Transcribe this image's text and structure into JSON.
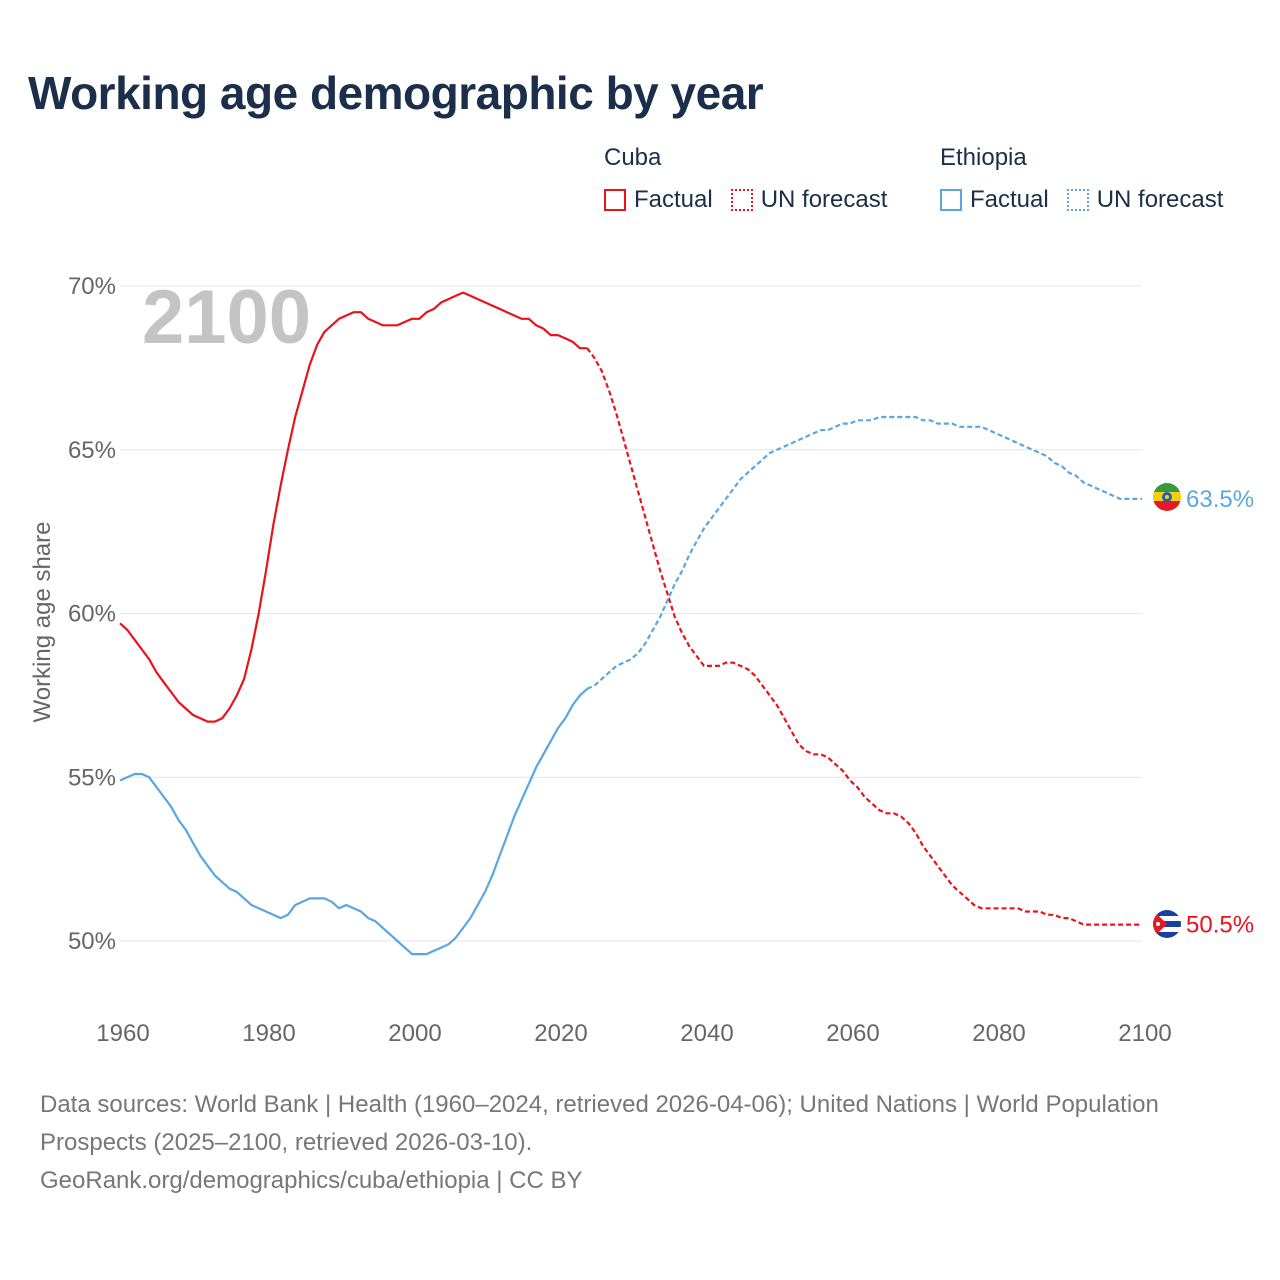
{
  "title": "Working age demographic by year",
  "legend": {
    "cuba": {
      "name": "Cuba",
      "factual": "Factual",
      "forecast": "UN forecast",
      "color": "#e8131b"
    },
    "ethiopia": {
      "name": "Ethiopia",
      "factual": "Factual",
      "forecast": "UN forecast",
      "color": "#5aa6e3"
    }
  },
  "chart_data": {
    "type": "line",
    "title": "Working age demographic by year",
    "ylabel": "Working age share",
    "xlabel": "",
    "xlim": [
      1960,
      2100
    ],
    "ylim": [
      48.6,
      70
    ],
    "x_ticks": [
      1960,
      1980,
      2000,
      2020,
      2040,
      2060,
      2080,
      2100
    ],
    "y_ticks": [
      50,
      55,
      60,
      65,
      70
    ],
    "y_tick_labels": [
      "50%",
      "55%",
      "60%",
      "65%",
      "70%"
    ],
    "grid": true,
    "year_watermark": "2100",
    "factual_until": 2024,
    "series": [
      {
        "name": "Cuba",
        "color": "#e8131b",
        "end_label": "50.5%",
        "points": [
          [
            1960,
            59.7
          ],
          [
            1961,
            59.5
          ],
          [
            1962,
            59.2
          ],
          [
            1963,
            58.9
          ],
          [
            1964,
            58.6
          ],
          [
            1965,
            58.2
          ],
          [
            1966,
            57.9
          ],
          [
            1967,
            57.6
          ],
          [
            1968,
            57.3
          ],
          [
            1969,
            57.1
          ],
          [
            1970,
            56.9
          ],
          [
            1971,
            56.8
          ],
          [
            1972,
            56.7
          ],
          [
            1973,
            56.7
          ],
          [
            1974,
            56.8
          ],
          [
            1975,
            57.1
          ],
          [
            1976,
            57.5
          ],
          [
            1977,
            58.0
          ],
          [
            1978,
            58.9
          ],
          [
            1979,
            60.0
          ],
          [
            1980,
            61.3
          ],
          [
            1981,
            62.7
          ],
          [
            1982,
            63.9
          ],
          [
            1983,
            65.0
          ],
          [
            1984,
            66.0
          ],
          [
            1985,
            66.8
          ],
          [
            1986,
            67.6
          ],
          [
            1987,
            68.2
          ],
          [
            1988,
            68.6
          ],
          [
            1989,
            68.8
          ],
          [
            1990,
            69.0
          ],
          [
            1991,
            69.1
          ],
          [
            1992,
            69.2
          ],
          [
            1993,
            69.2
          ],
          [
            1994,
            69.0
          ],
          [
            1995,
            68.9
          ],
          [
            1996,
            68.8
          ],
          [
            1997,
            68.8
          ],
          [
            1998,
            68.8
          ],
          [
            1999,
            68.9
          ],
          [
            2000,
            69.0
          ],
          [
            2001,
            69.0
          ],
          [
            2002,
            69.2
          ],
          [
            2003,
            69.3
          ],
          [
            2004,
            69.5
          ],
          [
            2005,
            69.6
          ],
          [
            2006,
            69.7
          ],
          [
            2007,
            69.8
          ],
          [
            2008,
            69.7
          ],
          [
            2009,
            69.6
          ],
          [
            2010,
            69.5
          ],
          [
            2011,
            69.4
          ],
          [
            2012,
            69.3
          ],
          [
            2013,
            69.2
          ],
          [
            2014,
            69.1
          ],
          [
            2015,
            69.0
          ],
          [
            2016,
            69.0
          ],
          [
            2017,
            68.8
          ],
          [
            2018,
            68.7
          ],
          [
            2019,
            68.5
          ],
          [
            2020,
            68.5
          ],
          [
            2021,
            68.4
          ],
          [
            2022,
            68.3
          ],
          [
            2023,
            68.1
          ],
          [
            2024,
            68.1
          ],
          [
            2025,
            67.8
          ],
          [
            2026,
            67.4
          ],
          [
            2027,
            66.8
          ],
          [
            2028,
            66.1
          ],
          [
            2029,
            65.3
          ],
          [
            2030,
            64.5
          ],
          [
            2031,
            63.7
          ],
          [
            2032,
            62.9
          ],
          [
            2033,
            62.1
          ],
          [
            2034,
            61.3
          ],
          [
            2035,
            60.6
          ],
          [
            2036,
            59.9
          ],
          [
            2037,
            59.4
          ],
          [
            2038,
            59.0
          ],
          [
            2039,
            58.7
          ],
          [
            2040,
            58.4
          ],
          [
            2041,
            58.4
          ],
          [
            2042,
            58.4
          ],
          [
            2043,
            58.5
          ],
          [
            2044,
            58.5
          ],
          [
            2045,
            58.4
          ],
          [
            2046,
            58.3
          ],
          [
            2047,
            58.1
          ],
          [
            2048,
            57.8
          ],
          [
            2049,
            57.5
          ],
          [
            2050,
            57.2
          ],
          [
            2051,
            56.8
          ],
          [
            2052,
            56.4
          ],
          [
            2053,
            56.0
          ],
          [
            2054,
            55.8
          ],
          [
            2055,
            55.7
          ],
          [
            2056,
            55.7
          ],
          [
            2057,
            55.6
          ],
          [
            2058,
            55.4
          ],
          [
            2059,
            55.2
          ],
          [
            2060,
            54.9
          ],
          [
            2061,
            54.7
          ],
          [
            2062,
            54.4
          ],
          [
            2063,
            54.2
          ],
          [
            2064,
            54.0
          ],
          [
            2065,
            53.9
          ],
          [
            2066,
            53.9
          ],
          [
            2067,
            53.8
          ],
          [
            2068,
            53.6
          ],
          [
            2069,
            53.3
          ],
          [
            2070,
            52.9
          ],
          [
            2071,
            52.6
          ],
          [
            2072,
            52.3
          ],
          [
            2073,
            52.0
          ],
          [
            2074,
            51.7
          ],
          [
            2075,
            51.5
          ],
          [
            2076,
            51.3
          ],
          [
            2077,
            51.1
          ],
          [
            2078,
            51.0
          ],
          [
            2079,
            51.0
          ],
          [
            2080,
            51.0
          ],
          [
            2081,
            51.0
          ],
          [
            2082,
            51.0
          ],
          [
            2083,
            51.0
          ],
          [
            2084,
            50.9
          ],
          [
            2085,
            50.9
          ],
          [
            2086,
            50.9
          ],
          [
            2087,
            50.8
          ],
          [
            2088,
            50.8
          ],
          [
            2089,
            50.7
          ],
          [
            2090,
            50.7
          ],
          [
            2091,
            50.6
          ],
          [
            2092,
            50.5
          ],
          [
            2093,
            50.5
          ],
          [
            2100,
            50.5
          ]
        ]
      },
      {
        "name": "Ethiopia",
        "color": "#5aa6e3",
        "end_label": "63.5%",
        "points": [
          [
            1960,
            54.9
          ],
          [
            1961,
            55.0
          ],
          [
            1962,
            55.1
          ],
          [
            1963,
            55.1
          ],
          [
            1964,
            55.0
          ],
          [
            1965,
            54.7
          ],
          [
            1966,
            54.4
          ],
          [
            1967,
            54.1
          ],
          [
            1968,
            53.7
          ],
          [
            1969,
            53.4
          ],
          [
            1970,
            53.0
          ],
          [
            1971,
            52.6
          ],
          [
            1972,
            52.3
          ],
          [
            1973,
            52.0
          ],
          [
            1974,
            51.8
          ],
          [
            1975,
            51.6
          ],
          [
            1976,
            51.5
          ],
          [
            1977,
            51.3
          ],
          [
            1978,
            51.1
          ],
          [
            1979,
            51.0
          ],
          [
            1980,
            50.9
          ],
          [
            1981,
            50.8
          ],
          [
            1982,
            50.7
          ],
          [
            1983,
            50.8
          ],
          [
            1984,
            51.1
          ],
          [
            1985,
            51.2
          ],
          [
            1986,
            51.3
          ],
          [
            1987,
            51.3
          ],
          [
            1988,
            51.3
          ],
          [
            1989,
            51.2
          ],
          [
            1990,
            51.0
          ],
          [
            1991,
            51.1
          ],
          [
            1992,
            51.0
          ],
          [
            1993,
            50.9
          ],
          [
            1994,
            50.7
          ],
          [
            1995,
            50.6
          ],
          [
            1996,
            50.4
          ],
          [
            1997,
            50.2
          ],
          [
            1998,
            50.0
          ],
          [
            1999,
            49.8
          ],
          [
            2000,
            49.6
          ],
          [
            2001,
            49.6
          ],
          [
            2002,
            49.6
          ],
          [
            2003,
            49.7
          ],
          [
            2004,
            49.8
          ],
          [
            2005,
            49.9
          ],
          [
            2006,
            50.1
          ],
          [
            2007,
            50.4
          ],
          [
            2008,
            50.7
          ],
          [
            2009,
            51.1
          ],
          [
            2010,
            51.5
          ],
          [
            2011,
            52.0
          ],
          [
            2012,
            52.6
          ],
          [
            2013,
            53.2
          ],
          [
            2014,
            53.8
          ],
          [
            2015,
            54.3
          ],
          [
            2016,
            54.8
          ],
          [
            2017,
            55.3
          ],
          [
            2018,
            55.7
          ],
          [
            2019,
            56.1
          ],
          [
            2020,
            56.5
          ],
          [
            2021,
            56.8
          ],
          [
            2022,
            57.2
          ],
          [
            2023,
            57.5
          ],
          [
            2024,
            57.7
          ],
          [
            2025,
            57.8
          ],
          [
            2026,
            58.0
          ],
          [
            2027,
            58.2
          ],
          [
            2028,
            58.4
          ],
          [
            2029,
            58.5
          ],
          [
            2030,
            58.6
          ],
          [
            2031,
            58.8
          ],
          [
            2032,
            59.1
          ],
          [
            2033,
            59.5
          ],
          [
            2034,
            59.9
          ],
          [
            2035,
            60.4
          ],
          [
            2036,
            60.9
          ],
          [
            2037,
            61.3
          ],
          [
            2038,
            61.8
          ],
          [
            2039,
            62.2
          ],
          [
            2040,
            62.6
          ],
          [
            2041,
            62.9
          ],
          [
            2042,
            63.2
          ],
          [
            2043,
            63.5
          ],
          [
            2044,
            63.8
          ],
          [
            2045,
            64.1
          ],
          [
            2046,
            64.3
          ],
          [
            2047,
            64.5
          ],
          [
            2048,
            64.7
          ],
          [
            2049,
            64.9
          ],
          [
            2050,
            65.0
          ],
          [
            2051,
            65.1
          ],
          [
            2052,
            65.2
          ],
          [
            2053,
            65.3
          ],
          [
            2054,
            65.4
          ],
          [
            2055,
            65.5
          ],
          [
            2056,
            65.6
          ],
          [
            2057,
            65.6
          ],
          [
            2058,
            65.7
          ],
          [
            2059,
            65.8
          ],
          [
            2060,
            65.8
          ],
          [
            2061,
            65.9
          ],
          [
            2062,
            65.9
          ],
          [
            2063,
            65.9
          ],
          [
            2064,
            66.0
          ],
          [
            2065,
            66.0
          ],
          [
            2066,
            66.0
          ],
          [
            2067,
            66.0
          ],
          [
            2068,
            66.0
          ],
          [
            2069,
            66.0
          ],
          [
            2070,
            65.9
          ],
          [
            2071,
            65.9
          ],
          [
            2072,
            65.8
          ],
          [
            2073,
            65.8
          ],
          [
            2074,
            65.8
          ],
          [
            2075,
            65.7
          ],
          [
            2076,
            65.7
          ],
          [
            2077,
            65.7
          ],
          [
            2078,
            65.7
          ],
          [
            2079,
            65.6
          ],
          [
            2080,
            65.5
          ],
          [
            2081,
            65.4
          ],
          [
            2082,
            65.3
          ],
          [
            2083,
            65.2
          ],
          [
            2084,
            65.1
          ],
          [
            2085,
            65.0
          ],
          [
            2086,
            64.9
          ],
          [
            2087,
            64.8
          ],
          [
            2088,
            64.6
          ],
          [
            2089,
            64.5
          ],
          [
            2090,
            64.3
          ],
          [
            2091,
            64.2
          ],
          [
            2092,
            64.0
          ],
          [
            2093,
            63.9
          ],
          [
            2094,
            63.8
          ],
          [
            2095,
            63.7
          ],
          [
            2096,
            63.6
          ],
          [
            2097,
            63.5
          ],
          [
            2098,
            63.5
          ],
          [
            2100,
            63.5
          ]
        ]
      }
    ]
  },
  "footer": {
    "sources": "Data sources: World Bank | Health (1960–2024, retrieved 2026-04-06); United Nations | World Population Prospects (2025–2100, retrieved 2026-03-10).",
    "attribution": "GeoRank.org/demographics/cuba/ethiopia | CC BY"
  }
}
